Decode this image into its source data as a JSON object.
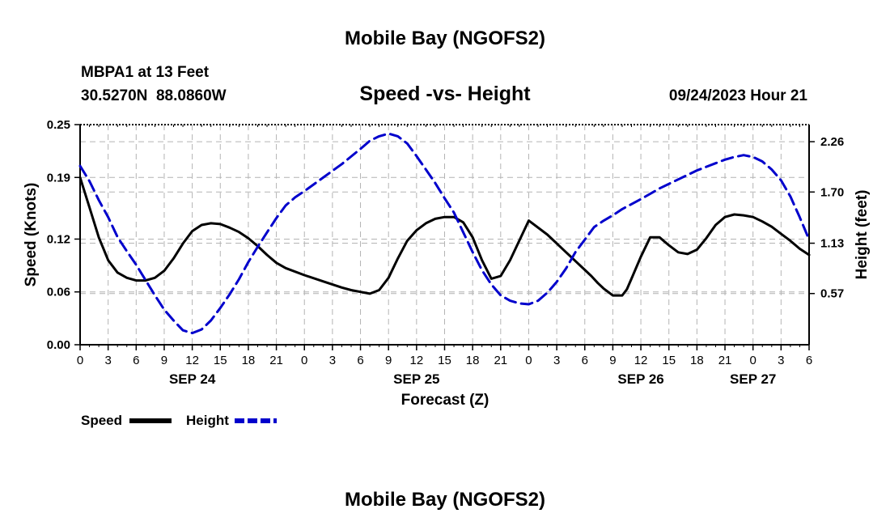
{
  "header": {
    "title": "Mobile Bay (NGOFS2)",
    "station": "MBPA1 at 13 Feet",
    "coords": "30.5270N  88.0860W",
    "subtitle": "Speed -vs- Height",
    "datetime": "09/24/2023 Hour 21"
  },
  "footer": {
    "title": "Mobile Bay (NGOFS2)"
  },
  "legend": [
    {
      "name": "Speed",
      "color": "#000000",
      "dash": false
    },
    {
      "name": "Height",
      "color": "#0000cc",
      "dash": true
    }
  ],
  "chart_data": {
    "type": "line",
    "title": "Speed -vs- Height",
    "xlabel": "Forecast (Z)",
    "ylabel_left": "Speed (Knots)",
    "ylabel_right": "Height (feet)",
    "xlim": [
      0,
      78
    ],
    "ylim_left": [
      0,
      0.25
    ],
    "ylim_right": [
      0,
      2.45
    ],
    "yticks_left": [
      "0.00",
      "0.06",
      "0.12",
      "0.19",
      "0.25"
    ],
    "yticks_right": [
      "0.57",
      "1.13",
      "1.70",
      "2.26"
    ],
    "xtick_labels": [
      "0",
      "3",
      "6",
      "9",
      "12",
      "15",
      "18",
      "21",
      "0",
      "3",
      "6",
      "9",
      "12",
      "15",
      "18",
      "21",
      "0",
      "3",
      "6",
      "9",
      "12",
      "15",
      "18",
      "21",
      "0",
      "3",
      "6"
    ],
    "date_labels": [
      {
        "label": "SEP 24",
        "x": 12
      },
      {
        "label": "SEP 25",
        "x": 36
      },
      {
        "label": "SEP 26",
        "x": 60
      },
      {
        "label": "SEP 27",
        "x": 72
      }
    ],
    "grid": true,
    "series": [
      {
        "name": "Speed",
        "axis": "left",
        "x": [
          0,
          1,
          2,
          3,
          4,
          5,
          6,
          7,
          8,
          9,
          10,
          11,
          12,
          13,
          14,
          15,
          16,
          17,
          18,
          19,
          20,
          21,
          22,
          24,
          26,
          28,
          29,
          30,
          31,
          32,
          33,
          34,
          35,
          36,
          37,
          38,
          39,
          40,
          41,
          42,
          43,
          44,
          45,
          46,
          48,
          50,
          52,
          54,
          54.7,
          55.4,
          56,
          57,
          58,
          58.5,
          59,
          60,
          61,
          62,
          63,
          64,
          65,
          66,
          67,
          68,
          69,
          70,
          71,
          72,
          73,
          74,
          75,
          76,
          77,
          78
        ],
        "values": [
          0.19,
          0.156,
          0.122,
          0.096,
          0.082,
          0.076,
          0.073,
          0.073,
          0.076,
          0.084,
          0.098,
          0.115,
          0.129,
          0.136,
          0.138,
          0.137,
          0.133,
          0.128,
          0.121,
          0.112,
          0.102,
          0.093,
          0.087,
          0.079,
          0.072,
          0.065,
          0.062,
          0.06,
          0.058,
          0.062,
          0.076,
          0.098,
          0.118,
          0.13,
          0.138,
          0.143,
          0.145,
          0.145,
          0.139,
          0.122,
          0.096,
          0.075,
          0.078,
          0.096,
          0.141,
          0.125,
          0.105,
          0.085,
          0.078,
          0.07,
          0.064,
          0.056,
          0.056,
          0.063,
          0.075,
          0.1,
          0.122,
          0.122,
          0.113,
          0.105,
          0.103,
          0.108,
          0.121,
          0.136,
          0.145,
          0.148,
          0.147,
          0.145,
          0.14,
          0.134,
          0.126,
          0.118,
          0.109,
          0.102
        ]
      },
      {
        "name": "Height",
        "axis": "right",
        "x": [
          0,
          1,
          2,
          3,
          4,
          5,
          6,
          7,
          8,
          9,
          10,
          11,
          12,
          13,
          14,
          15,
          16,
          17,
          18,
          19,
          20,
          21,
          22,
          23,
          24,
          26,
          28,
          30,
          31,
          32,
          33,
          34,
          35,
          36,
          37,
          38,
          39,
          40,
          41,
          42,
          43,
          44,
          45,
          46,
          47,
          48,
          49,
          50,
          51,
          52,
          53,
          54,
          55,
          56,
          57,
          58,
          60,
          62,
          64,
          66,
          68,
          69,
          70,
          71,
          72,
          73,
          74,
          75,
          76,
          77,
          78
        ],
        "values": [
          1.99,
          1.82,
          1.61,
          1.42,
          1.2,
          1.04,
          0.89,
          0.72,
          0.55,
          0.39,
          0.27,
          0.16,
          0.13,
          0.17,
          0.27,
          0.41,
          0.56,
          0.73,
          0.92,
          1.09,
          1.25,
          1.41,
          1.55,
          1.64,
          1.71,
          1.86,
          2.01,
          2.18,
          2.27,
          2.32,
          2.35,
          2.32,
          2.24,
          2.1,
          1.95,
          1.8,
          1.63,
          1.47,
          1.25,
          1.03,
          0.83,
          0.67,
          0.55,
          0.49,
          0.46,
          0.45,
          0.49,
          0.58,
          0.7,
          0.85,
          1.03,
          1.17,
          1.31,
          1.38,
          1.44,
          1.51,
          1.62,
          1.74,
          1.84,
          1.94,
          2.02,
          2.06,
          2.09,
          2.11,
          2.09,
          2.04,
          1.95,
          1.83,
          1.65,
          1.42,
          1.17
        ]
      }
    ]
  }
}
